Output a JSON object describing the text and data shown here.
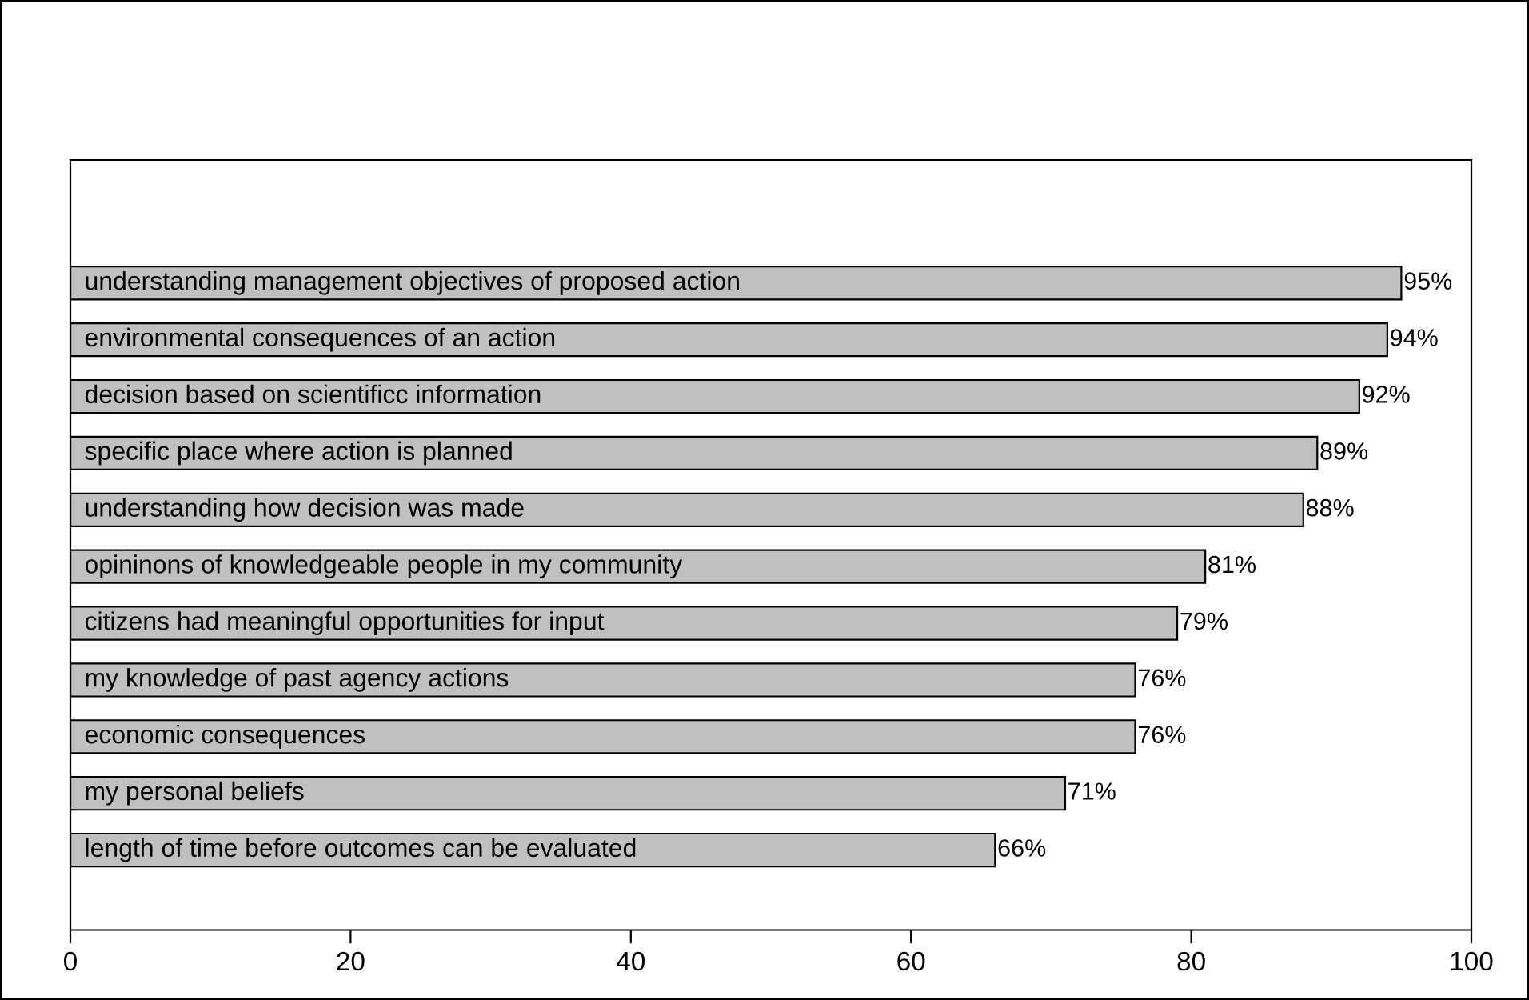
{
  "chart_data": {
    "type": "bar",
    "orientation": "horizontal",
    "categories": [
      "understanding management objectives of proposed action",
      "environmental consequences of an action",
      "decision based on scientificc information",
      "specific place where action is planned",
      "understanding how decision was made",
      "opininons of knowledgeable people in my community",
      "citizens had meaningful opportunities for input",
      "my knowledge of past agency actions",
      "economic consequences",
      "my personal beliefs",
      "length of time before outcomes can be evaluated"
    ],
    "values": [
      95,
      94,
      92,
      89,
      88,
      81,
      79,
      76,
      76,
      71,
      66
    ],
    "value_labels": [
      "95%",
      "94%",
      "92%",
      "89%",
      "88%",
      "81%",
      "79%",
      "76%",
      "76%",
      "71%",
      "66%"
    ],
    "color": "#c0c0c0",
    "xlim": [
      0,
      100
    ],
    "xticks": [
      0,
      20,
      40,
      60,
      80,
      100
    ],
    "grid": false,
    "legend": false
  }
}
